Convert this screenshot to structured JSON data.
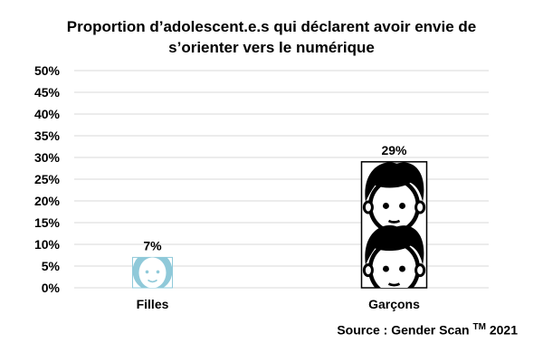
{
  "chart_data": {
    "type": "bar",
    "title_lines": [
      "Proportion d’adolescent.e.s qui déclarent avoir envie de",
      "s’orienter vers le numérique"
    ],
    "categories": [
      "Filles",
      "Garçons"
    ],
    "values": [
      7,
      29
    ],
    "data_labels": [
      "7%",
      "29%"
    ],
    "ylim": [
      0,
      50
    ],
    "y_ticks": [
      "0%",
      "5%",
      "10%",
      "15%",
      "20%",
      "25%",
      "30%",
      "35%",
      "40%",
      "45%",
      "50%"
    ],
    "grid": true,
    "bar_styles": [
      "girl-pictogram",
      "boy-pictogram"
    ],
    "colors": {
      "girl": "#8fc9d9",
      "boy": "#000000",
      "grid": "#d9d9d9"
    },
    "source": {
      "prefix": "Source : Gender Scan ",
      "tm": "TM",
      "suffix": " 2021"
    }
  }
}
